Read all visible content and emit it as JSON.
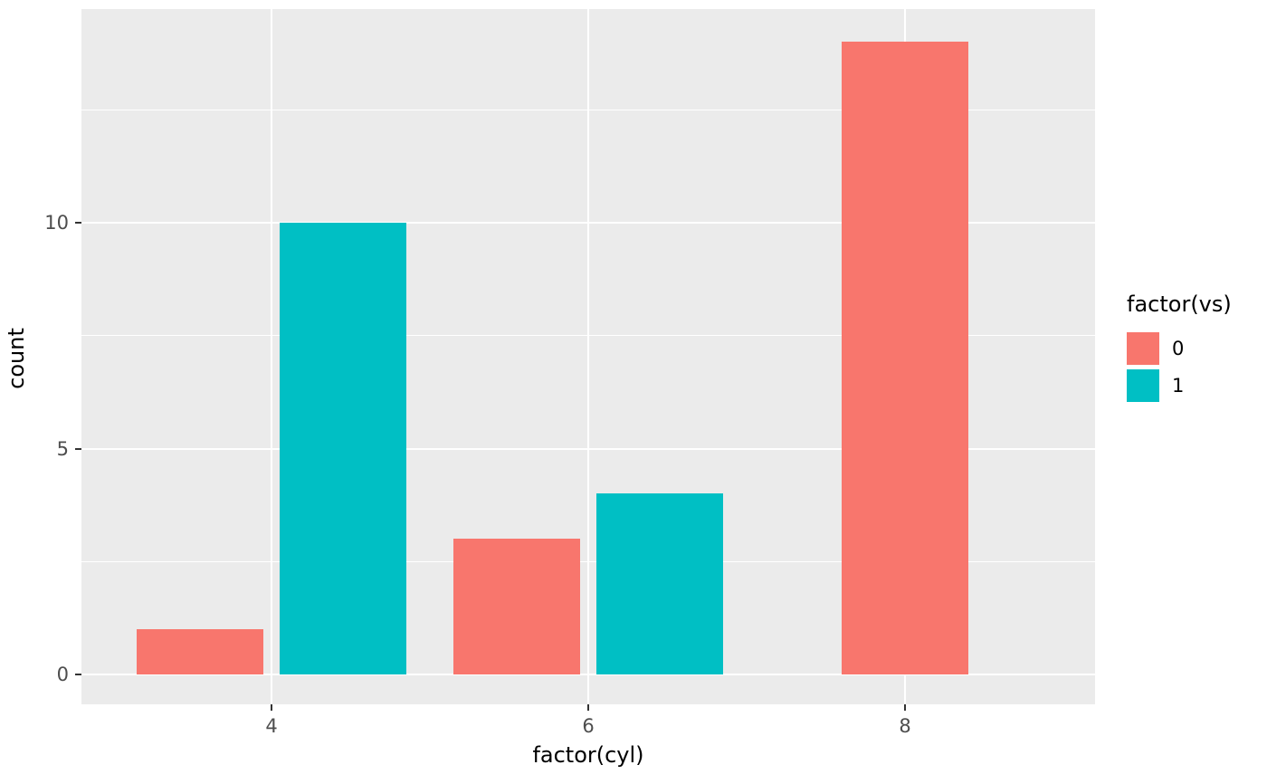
{
  "chart_data": {
    "type": "bar",
    "title": "",
    "categories": [
      "4",
      "6",
      "8"
    ],
    "series": [
      {
        "name": "0",
        "color": "#F8766D",
        "values": [
          1,
          3,
          14
        ]
      },
      {
        "name": "1",
        "color": "#00BFC4",
        "values": [
          10,
          4,
          0
        ]
      }
    ],
    "xlabel": "factor(cyl)",
    "ylabel": "count",
    "legend_title": "factor(vs)",
    "legend_position": "right",
    "ylim": [
      0,
      14.7
    ],
    "yticks": [
      0,
      5,
      10
    ],
    "yticks_minor": [
      2.5,
      7.5,
      12.5
    ],
    "grid": true,
    "panel_bg": "#EBEBEB",
    "grid_color": "#FFFFFF",
    "tick_label_color": "#4D4D4D",
    "tick_mark_color": "#333333"
  }
}
